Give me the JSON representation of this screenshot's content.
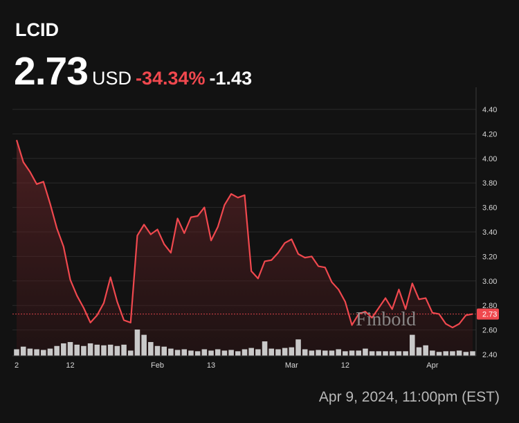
{
  "header": {
    "ticker": "LCID",
    "price": "2.73",
    "currency": "USD",
    "change_pct": "-34.34%",
    "change_abs": "-1.43"
  },
  "footer": {
    "timestamp": "Apr 9, 2024, 11:00pm (EST)"
  },
  "watermark": "Finbold",
  "colors": {
    "line": "#f0484e",
    "background": "#121212",
    "volume": "#c9c9c9",
    "price_label_bg": "#f0484e"
  },
  "chart_data": {
    "type": "line",
    "series": [
      {
        "values": [
          4.15,
          3.97,
          3.89,
          3.79,
          3.81,
          3.63,
          3.43,
          3.28,
          3.01,
          2.88,
          2.78,
          2.66,
          2.72,
          2.82,
          3.03,
          2.83,
          2.68,
          2.66,
          3.37,
          3.46,
          3.38,
          3.42,
          3.3,
          3.23,
          3.51,
          3.39,
          3.52,
          3.53,
          3.6,
          3.33,
          3.44,
          3.62,
          3.71,
          3.68,
          3.7,
          3.08,
          3.02,
          3.16,
          3.17,
          3.23,
          3.31,
          3.34,
          3.22,
          3.19,
          3.2,
          3.12,
          3.11,
          2.99,
          2.93,
          2.83,
          2.64,
          2.73,
          2.75,
          2.7,
          2.78,
          2.86,
          2.77,
          2.93,
          2.77,
          2.98,
          2.85,
          2.86,
          2.74,
          2.73,
          2.65,
          2.62,
          2.65,
          2.72,
          2.73
        ]
      }
    ],
    "volume": [
      10,
      14,
      11,
      10,
      9,
      11,
      15,
      19,
      21,
      17,
      15,
      19,
      17,
      16,
      17,
      15,
      17,
      8,
      40,
      32,
      21,
      15,
      14,
      11,
      9,
      10,
      8,
      7,
      10,
      8,
      10,
      8,
      9,
      7,
      10,
      12,
      10,
      22,
      11,
      10,
      12,
      13,
      25,
      10,
      8,
      9,
      8,
      8,
      10,
      7,
      8,
      8,
      11,
      7,
      7,
      7,
      7,
      7,
      7,
      32,
      13,
      16,
      8,
      6,
      7,
      7,
      8,
      6,
      7
    ],
    "y_ticks": [
      "4.40",
      "4.20",
      "4.00",
      "3.80",
      "3.60",
      "3.40",
      "3.20",
      "3.00",
      "2.80",
      "2.60",
      "2.40"
    ],
    "x_ticks": [
      {
        "label": "2",
        "index": 0
      },
      {
        "label": "12",
        "index": 8
      },
      {
        "label": "Feb",
        "index": 21
      },
      {
        "label": "13",
        "index": 29
      },
      {
        "label": "Mar",
        "index": 41
      },
      {
        "label": "12",
        "index": 49
      },
      {
        "label": "Apr",
        "index": 62
      }
    ],
    "ylim": [
      2.4,
      4.52
    ],
    "last_value_label": "2.73",
    "grid": true
  }
}
